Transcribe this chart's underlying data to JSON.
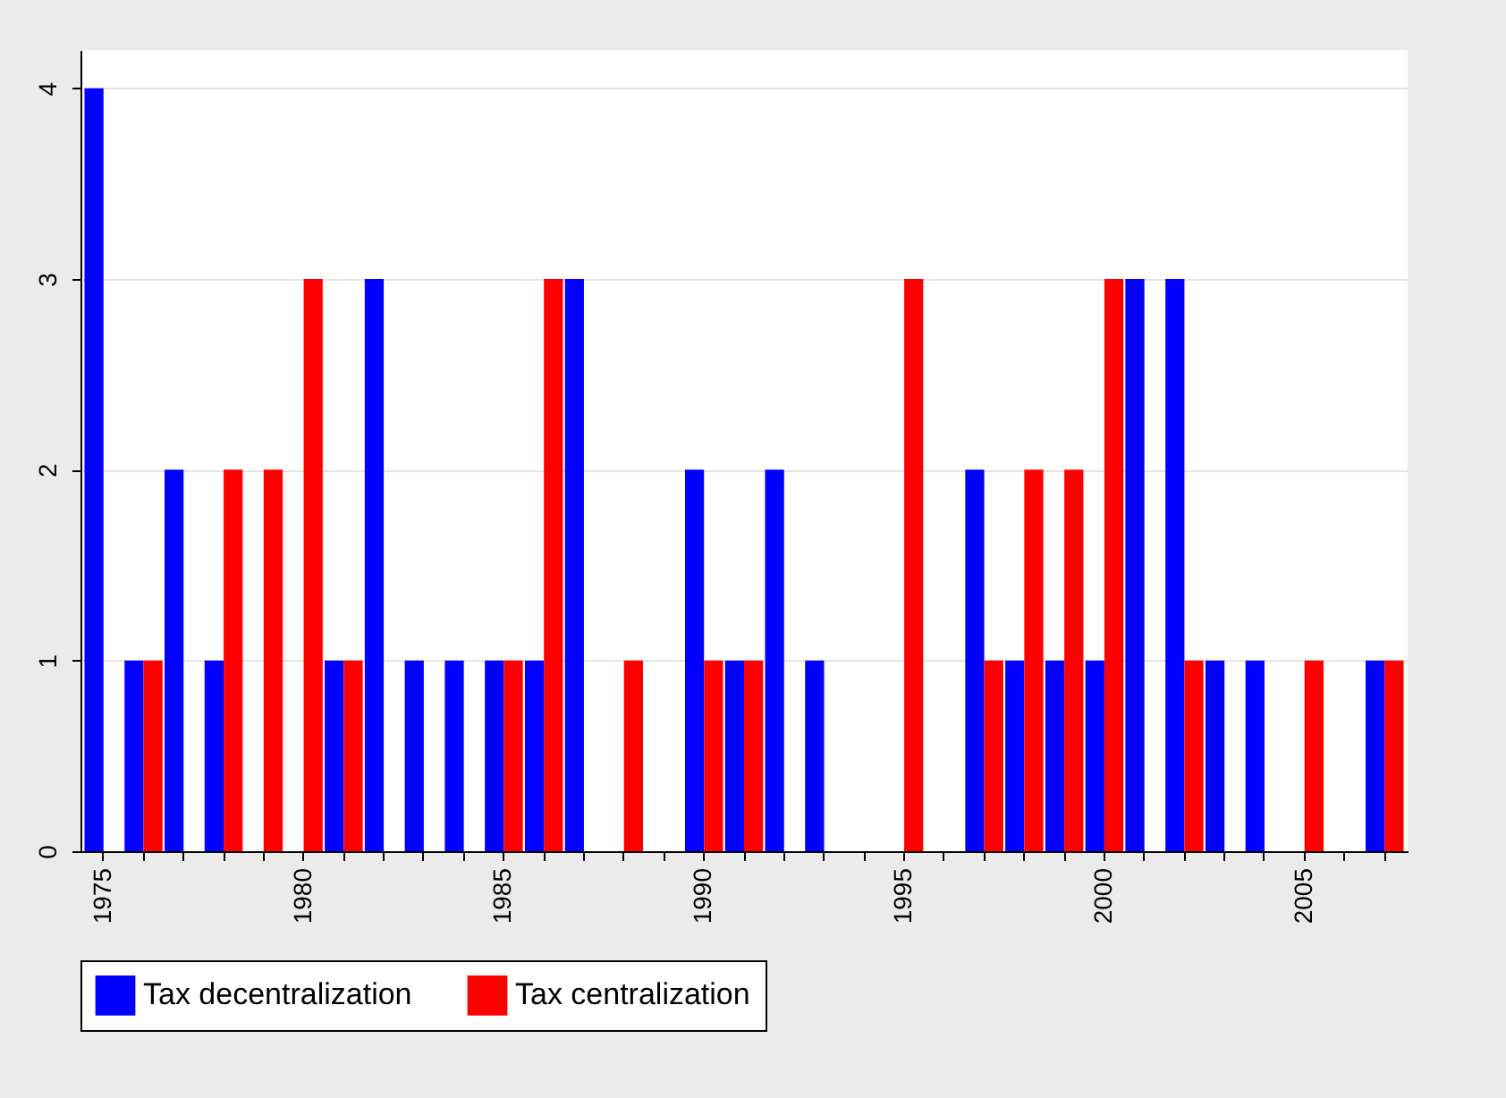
{
  "chart_data": {
    "type": "bar",
    "categories": [
      "1975",
      null,
      null,
      null,
      null,
      "1980",
      null,
      null,
      null,
      null,
      "1985",
      null,
      null,
      null,
      null,
      "1990",
      null,
      null,
      null,
      null,
      "1995",
      null,
      null,
      null,
      null,
      "2000",
      null,
      null,
      null,
      null,
      "2005",
      null,
      null
    ],
    "series": [
      {
        "name": "Tax decentralization",
        "color": "#0000ff",
        "values": [
          4,
          1,
          2,
          1,
          0,
          0,
          1,
          3,
          1,
          1,
          1,
          1,
          3,
          0,
          0,
          2,
          1,
          2,
          1,
          0,
          0,
          0,
          2,
          1,
          1,
          1,
          3,
          3,
          1,
          1,
          0,
          0,
          1
        ]
      },
      {
        "name": "Tax centralization",
        "color": "#ff0000",
        "values": [
          0,
          1,
          0,
          2,
          2,
          3,
          1,
          0,
          0,
          0,
          1,
          3,
          0,
          1,
          0,
          1,
          1,
          0,
          0,
          0,
          3,
          0,
          1,
          2,
          2,
          3,
          0,
          1,
          0,
          0,
          1,
          0,
          1
        ]
      }
    ],
    "ylim": [
      0,
      4.2
    ],
    "yticks": [
      0,
      1,
      2,
      3,
      4
    ],
    "grid": "y",
    "legend": "bottom"
  }
}
